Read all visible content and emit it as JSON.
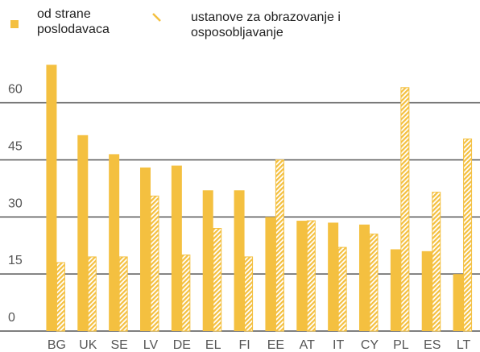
{
  "chart_data": {
    "type": "bar",
    "categories": [
      "BG",
      "UK",
      "SE",
      "LV",
      "DE",
      "EL",
      "FI",
      "EE",
      "AT",
      "IT",
      "CY",
      "PL",
      "ES",
      "LT"
    ],
    "series": [
      {
        "name": "od strane poslodavaca",
        "color": "#f4c040",
        "hatch": false,
        "values": [
          70,
          51.5,
          46.5,
          43,
          43.5,
          37,
          37,
          30,
          29,
          28.5,
          28,
          21.5,
          21,
          15
        ]
      },
      {
        "name": "ustanove za obrazovanje i osposobljavanje",
        "color": "#f4c040",
        "hatch": true,
        "values": [
          18,
          19.5,
          19.5,
          35.5,
          20,
          27,
          19.5,
          45,
          29,
          22,
          25.5,
          64,
          36.5,
          50.5
        ]
      }
    ],
    "ylim": [
      0,
      72
    ],
    "yticks": [
      0,
      15,
      30,
      45,
      60
    ],
    "grid": true
  }
}
